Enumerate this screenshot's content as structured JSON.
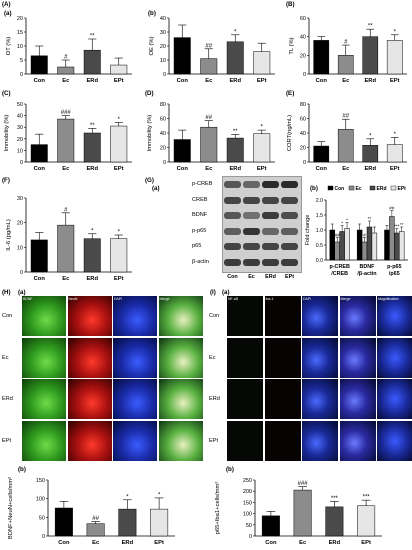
{
  "groups": [
    "Con",
    "Ec",
    "ERd",
    "EPt"
  ],
  "panels": {
    "A": {
      "letter": "(A)",
      "sub": "(a)",
      "ylabel": "OT (%)",
      "ylim": [
        0,
        20
      ],
      "ticks": [
        "0",
        "5",
        "10",
        "15",
        "20"
      ]
    },
    "Ab": {
      "sub": "(b)",
      "ylabel": "OE (%)",
      "ylim": [
        0,
        40
      ],
      "ticks": [
        "0",
        "10",
        "20",
        "30",
        "40"
      ]
    },
    "B": {
      "letter": "(B)",
      "ylabel": "TL (%)",
      "ylim": [
        0,
        60
      ],
      "ticks": [
        "0",
        "20",
        "40",
        "60"
      ]
    },
    "C": {
      "letter": "(C)",
      "ylabel": "Immobility (%)",
      "ylim": [
        0,
        50
      ],
      "ticks": [
        "0",
        "10",
        "20",
        "30",
        "40",
        "50"
      ]
    },
    "D": {
      "letter": "(D)",
      "ylabel": "Immobility (%)",
      "ylim": [
        0,
        80
      ],
      "ticks": [
        "0",
        "20",
        "40",
        "60",
        "80"
      ]
    },
    "E": {
      "letter": "(E)",
      "ylabel": "CORT(ng/mL)",
      "ylim": [
        0,
        80
      ],
      "ticks": [
        "0",
        "20",
        "40",
        "60",
        "80"
      ]
    },
    "F": {
      "letter": "(F)",
      "ylabel": "IL-6 (pg/mL)",
      "ylim": [
        0,
        30
      ],
      "ticks": [
        "0",
        "10",
        "20",
        "30"
      ]
    },
    "G": {
      "letter": "(G)",
      "sub": "(a)",
      "subb": "(b)",
      "ylabel": "Fold change",
      "ylim": [
        0,
        2
      ],
      "ticks": [
        "0.0",
        "0.5",
        "1.0",
        "1.5",
        "2.0"
      ],
      "proteins": [
        "p-CREB",
        "CREB",
        "BDNF",
        "p-p65",
        "p65",
        "β-actin"
      ],
      "categories": [
        "p-CREB\n/CREB",
        "BDNF\n/β-actin",
        "p-p65\n/p65"
      ]
    },
    "H": {
      "letter": "(H)",
      "sub": "(a)",
      "subb": "(b)",
      "channels": [
        "BDNF",
        "NeuN",
        "DAPI",
        "Merge"
      ],
      "ylabel": "BDNF+NeuN+cells/mm²",
      "ylim": [
        0,
        150
      ],
      "ticks": [
        "0",
        "50",
        "100",
        "150"
      ]
    },
    "I": {
      "letter": "(I)",
      "sub": "(a)",
      "subb": "(b)",
      "channels": [
        "NF-κB",
        "Iba-1",
        "DAPI",
        "Merge",
        "Magnification"
      ],
      "ylabel": "p65+Iba1+cells/mm²",
      "ylim": [
        0,
        250
      ],
      "ticks": [
        "0",
        "50",
        "100",
        "150",
        "200",
        "250"
      ]
    }
  },
  "chart_data": [
    {
      "id": "A_a",
      "type": "bar",
      "categories": [
        "Con",
        "Ec",
        "ERd",
        "EPt"
      ],
      "values": [
        6.5,
        2.5,
        8.5,
        3.2
      ],
      "errors": [
        3.5,
        2.5,
        4.0,
        2.5
      ],
      "sig": [
        "",
        "#",
        "**",
        ""
      ],
      "ylabel": "OT (%)",
      "ylim": [
        0,
        20
      ]
    },
    {
      "id": "A_b",
      "type": "bar",
      "categories": [
        "Con",
        "Ec",
        "ERd",
        "EPt"
      ],
      "values": [
        26,
        11,
        23,
        16
      ],
      "errors": [
        9,
        7,
        5,
        6
      ],
      "sig": [
        "",
        "##",
        "*",
        ""
      ],
      "ylabel": "OE (%)",
      "ylim": [
        0,
        40
      ]
    },
    {
      "id": "B",
      "type": "bar",
      "categories": [
        "Con",
        "Ec",
        "ERd",
        "EPt"
      ],
      "values": [
        36,
        20,
        40,
        36
      ],
      "errors": [
        4,
        11,
        8,
        6
      ],
      "sig": [
        "",
        "#",
        "**",
        "*"
      ],
      "ylabel": "TL (%)",
      "ylim": [
        0,
        60
      ]
    },
    {
      "id": "C",
      "type": "bar",
      "categories": [
        "Con",
        "Ec",
        "ERd",
        "EPt"
      ],
      "values": [
        15,
        37,
        25,
        31
      ],
      "errors": [
        9,
        3,
        4,
        3
      ],
      "sig": [
        "",
        "###",
        "**",
        "*"
      ],
      "ylabel": "Immobility (%)",
      "ylim": [
        0,
        50
      ]
    },
    {
      "id": "D",
      "type": "bar",
      "categories": [
        "Con",
        "Ec",
        "ERd",
        "EPt"
      ],
      "values": [
        31,
        48,
        33,
        39
      ],
      "errors": [
        13,
        9,
        5,
        5
      ],
      "sig": [
        "",
        "##",
        "**",
        "*"
      ],
      "ylabel": "Immobility (%)",
      "ylim": [
        0,
        80
      ]
    },
    {
      "id": "E",
      "type": "bar",
      "categories": [
        "Con",
        "Ec",
        "ERd",
        "EPt"
      ],
      "values": [
        22,
        45,
        23,
        24
      ],
      "errors": [
        6,
        14,
        9,
        10
      ],
      "sig": [
        "",
        "##",
        "*",
        "*"
      ],
      "ylabel": "CORT(ng/mL)",
      "ylim": [
        0,
        80
      ]
    },
    {
      "id": "F",
      "type": "bar",
      "categories": [
        "Con",
        "Ec",
        "ERd",
        "EPt"
      ],
      "values": [
        13,
        19,
        13.5,
        13.5
      ],
      "errors": [
        3,
        5,
        2,
        1.5
      ],
      "sig": [
        "",
        "#",
        "*",
        "*"
      ],
      "ylabel": "IL-6 (pg/mL)",
      "ylim": [
        0,
        30
      ]
    },
    {
      "id": "G_b",
      "type": "bar",
      "categories": [
        "p-CREB\n/CREB",
        "BDNF\n/β-actin",
        "p-p65\n/p65"
      ],
      "series": [
        {
          "name": "Con",
          "values": [
            1.0,
            1.0,
            1.0
          ],
          "errors": [
            0.2,
            0.2,
            0.15
          ]
        },
        {
          "name": "Ec",
          "values": [
            0.6,
            0.6,
            1.45
          ],
          "errors": [
            0.15,
            0.15,
            0.2
          ]
        },
        {
          "name": "ERd",
          "values": [
            0.95,
            1.1,
            0.9
          ],
          "errors": [
            0.2,
            0.2,
            0.15
          ]
        },
        {
          "name": "EPt",
          "values": [
            1.05,
            0.9,
            0.95
          ],
          "errors": [
            0.2,
            0.2,
            0.15
          ]
        }
      ],
      "sig": [
        [
          "",
          "##",
          "*",
          "*"
        ],
        [
          "",
          "#",
          "**",
          ""
        ],
        [
          "",
          "##",
          "***",
          "**"
        ]
      ],
      "ylabel": "Fold change",
      "ylim": [
        0,
        2
      ],
      "legend": "top"
    },
    {
      "id": "H_b",
      "type": "bar",
      "categories": [
        "Con",
        "Ec",
        "ERd",
        "EPt"
      ],
      "values": [
        75,
        33,
        72,
        72
      ],
      "errors": [
        18,
        6,
        25,
        30
      ],
      "sig": [
        "",
        "##",
        "*",
        "*"
      ],
      "ylabel": "BDNF+NeuN+cells/mm²",
      "ylim": [
        0,
        150
      ]
    },
    {
      "id": "I_b",
      "type": "bar",
      "categories": [
        "Con",
        "Ec",
        "ERd",
        "EPt"
      ],
      "values": [
        90,
        205,
        130,
        135
      ],
      "errors": [
        20,
        15,
        25,
        25
      ],
      "sig": [
        "",
        "###",
        "***",
        "***"
      ],
      "ylabel": "p65+Iba1+cells/mm²",
      "ylim": [
        0,
        250
      ]
    }
  ],
  "colors": {
    "Con": "#000000",
    "Ec": "#8c8c8c",
    "ERd": "#4a4a4a",
    "EPt": "#e6e6e6"
  }
}
